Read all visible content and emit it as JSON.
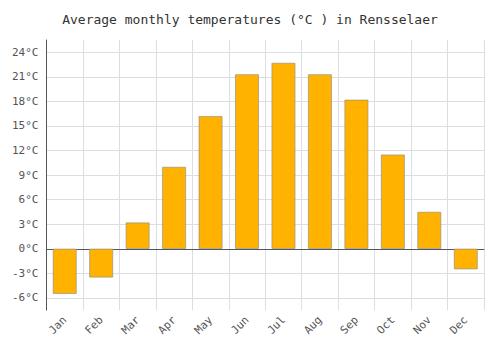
{
  "chart_data": {
    "type": "bar",
    "title": "Average monthly temperatures (°C ) in Rensselaer",
    "categories": [
      "Jan",
      "Feb",
      "Mar",
      "Apr",
      "May",
      "Jun",
      "Jul",
      "Aug",
      "Sep",
      "Oct",
      "Nov",
      "Dec"
    ],
    "values": [
      -5.5,
      -3.5,
      3.2,
      10.0,
      16.2,
      21.3,
      22.7,
      21.3,
      18.2,
      11.5,
      4.5,
      -2.5
    ],
    "color": "#FFB300",
    "ylim": [
      -7.5,
      25.5
    ],
    "yticks": [
      {
        "value": -6,
        "label": "-6°C"
      },
      {
        "value": -3,
        "label": "-3°C"
      },
      {
        "value": 0,
        "label": "0°C"
      },
      {
        "value": 3,
        "label": "3°C"
      },
      {
        "value": 6,
        "label": "6°C"
      },
      {
        "value": 9,
        "label": "9°C"
      },
      {
        "value": 12,
        "label": "12°C"
      },
      {
        "value": 15,
        "label": "15°C"
      },
      {
        "value": 18,
        "label": "18°C"
      },
      {
        "value": 21,
        "label": "21°C"
      },
      {
        "value": 24,
        "label": "24°C"
      }
    ],
    "grid": true
  }
}
